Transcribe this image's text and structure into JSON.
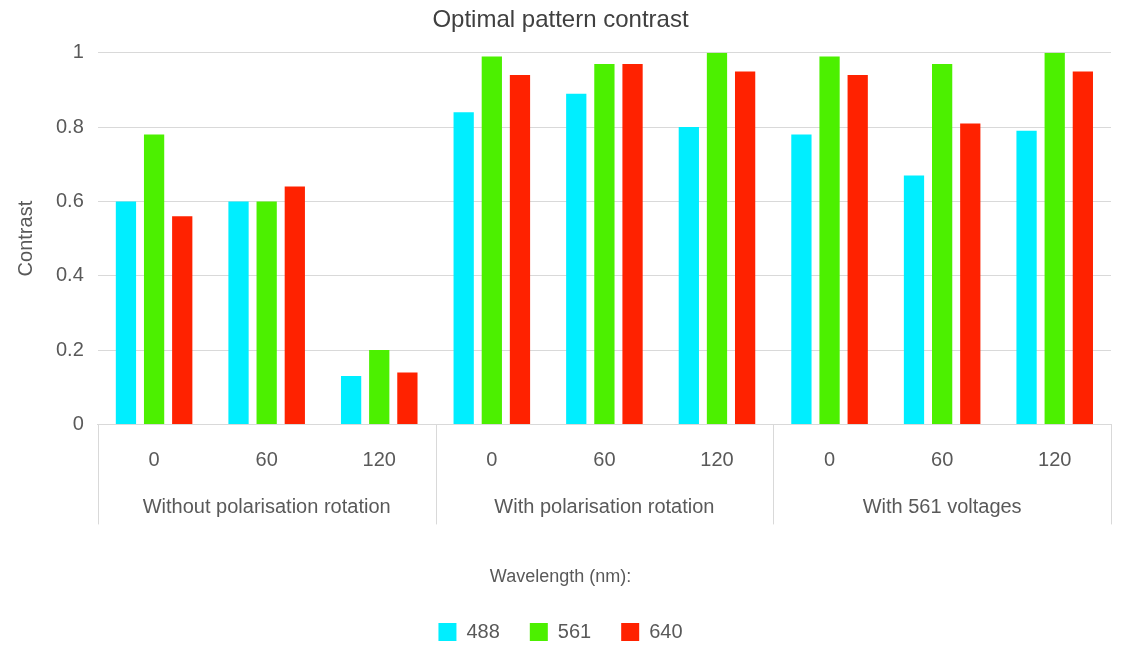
{
  "chart_data": {
    "type": "bar",
    "title": "Optimal pattern contrast",
    "ylabel": "Contrast",
    "legend_title": "Wavelength (nm):",
    "categories": [
      "0",
      "60",
      "120",
      "0",
      "60",
      "120",
      "0",
      "60",
      "120"
    ],
    "annotations": [
      "Without polarisation rotation",
      "With polarisation rotation",
      "With 561 voltages"
    ],
    "series": [
      {
        "name": "488",
        "color": "#00eeff",
        "values": [
          0.6,
          0.6,
          0.13,
          0.84,
          0.89,
          0.8,
          0.78,
          0.67,
          0.79
        ]
      },
      {
        "name": "561",
        "color": "#4cf000",
        "values": [
          0.78,
          0.6,
          0.2,
          0.99,
          0.97,
          1.0,
          0.99,
          0.97,
          1.0
        ]
      },
      {
        "name": "640",
        "color": "#ff2200",
        "values": [
          0.56,
          0.64,
          0.14,
          0.94,
          0.97,
          0.95,
          0.94,
          0.81,
          0.95
        ]
      }
    ],
    "ylim": [
      0,
      1
    ],
    "yticks": [
      0,
      0.2,
      0.4,
      0.6,
      0.8,
      1
    ],
    "grid": "y",
    "legend": "bottom"
  }
}
